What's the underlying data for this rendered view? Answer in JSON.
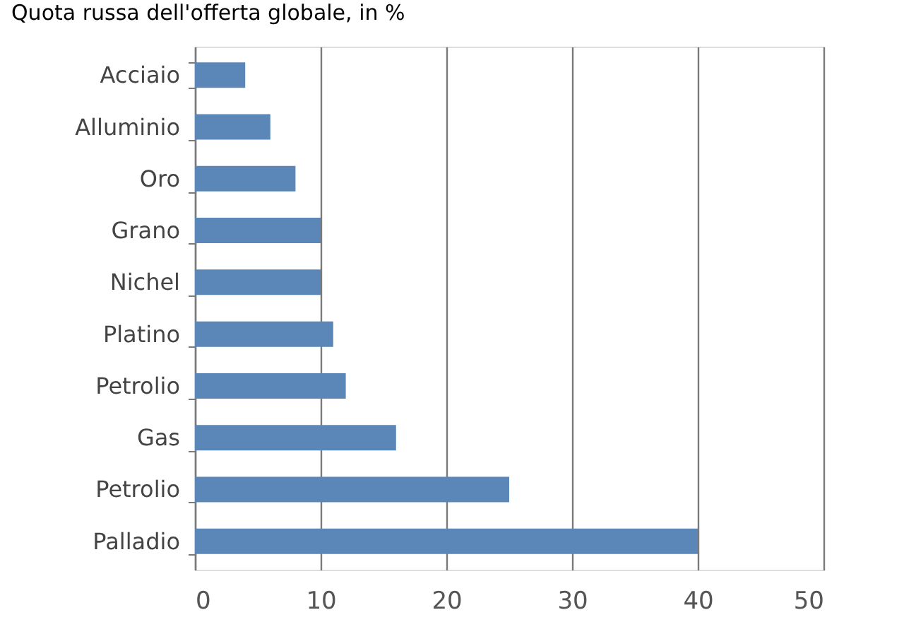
{
  "chart_data": {
    "type": "bar",
    "orientation": "horizontal",
    "title": "Quota russa dell'offerta globale, in %",
    "categories": [
      "Acciaio",
      "Alluminio",
      "Oro",
      "Grano",
      "Nichel",
      "Platino",
      "Petrolio",
      "Gas",
      "Petrolio",
      "Palladio"
    ],
    "values": [
      4,
      6,
      8,
      10,
      10,
      11,
      12,
      16,
      25,
      40
    ],
    "color": "#5b87b8",
    "xlim": [
      0,
      50
    ],
    "xticks": [
      0,
      10,
      20,
      30,
      40,
      50
    ],
    "grid": "x"
  }
}
